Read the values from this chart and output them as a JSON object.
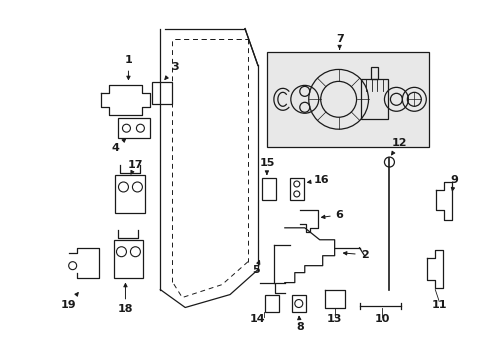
{
  "bg_color": "#ffffff",
  "line_color": "#1a1a1a",
  "fig_width": 4.89,
  "fig_height": 3.6,
  "dpi": 100,
  "box7_fill": "#e8e8e8"
}
